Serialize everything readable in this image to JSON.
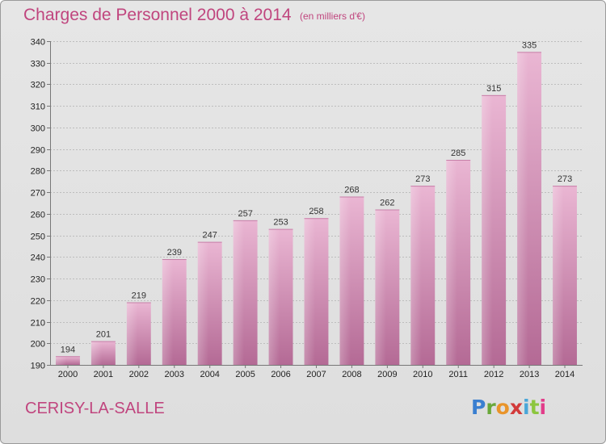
{
  "header": {
    "title": "Charges de Personnel 2000 à 2014",
    "subtitle": "(en milliers d'€)"
  },
  "footer": {
    "commune": "CERISY-LA-SALLE",
    "logo_text": "Proxiti"
  },
  "colors": {
    "accent": "#c0457e",
    "bar_light": "#e9b3d1",
    "bar_dark": "#b86d98"
  },
  "chart_data": {
    "type": "bar",
    "categories": [
      "2000",
      "2001",
      "2002",
      "2003",
      "2004",
      "2005",
      "2006",
      "2007",
      "2008",
      "2009",
      "2010",
      "2011",
      "2012",
      "2013",
      "2014"
    ],
    "values": [
      194,
      201,
      219,
      239,
      247,
      257,
      253,
      258,
      268,
      262,
      273,
      285,
      315,
      335,
      273
    ],
    "title": "Charges de Personnel 2000 à 2014",
    "subtitle": "(en milliers d'€)",
    "xlabel": "",
    "ylabel": "",
    "ylim": [
      190,
      340
    ],
    "yticks": [
      190,
      200,
      210,
      220,
      230,
      240,
      250,
      260,
      270,
      280,
      290,
      300,
      310,
      320,
      330,
      340
    ],
    "grid": true,
    "data_labels": true
  }
}
